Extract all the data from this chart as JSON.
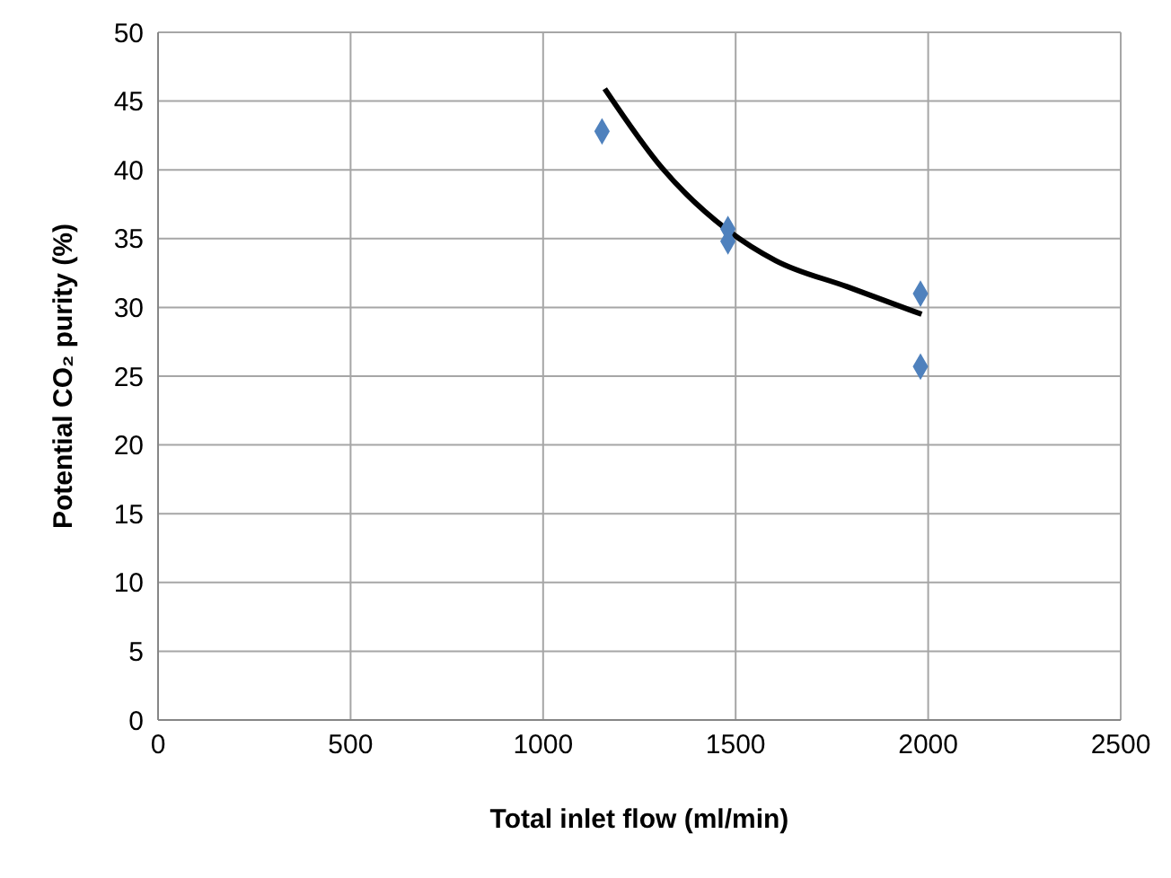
{
  "chart_data": {
    "type": "scatter",
    "xlabel": "Total inlet flow (ml/min)",
    "ylabel": "Potential CO₂ purity (%)",
    "xlim": [
      0,
      2500
    ],
    "xticks": [
      0,
      500,
      1000,
      1500,
      2000,
      2500
    ],
    "ylim": [
      0,
      50
    ],
    "yticks": [
      0,
      5,
      10,
      15,
      20,
      25,
      30,
      35,
      40,
      45,
      50
    ],
    "grid": true,
    "series": [
      {
        "marker": "diamond",
        "color": "#4f81bd",
        "x": [
          1153,
          1480,
          1480,
          1980,
          1980
        ],
        "values": [
          42.8,
          35.7,
          34.8,
          31.0,
          25.7
        ]
      },
      {
        "type": "line",
        "marker": "none",
        "color": "#000000",
        "x": [
          1160,
          1310,
          1480,
          1604,
          1790,
          1983
        ],
        "values": [
          45.9,
          40.1,
          35.6,
          33.4,
          31.5,
          29.5
        ]
      }
    ]
  }
}
